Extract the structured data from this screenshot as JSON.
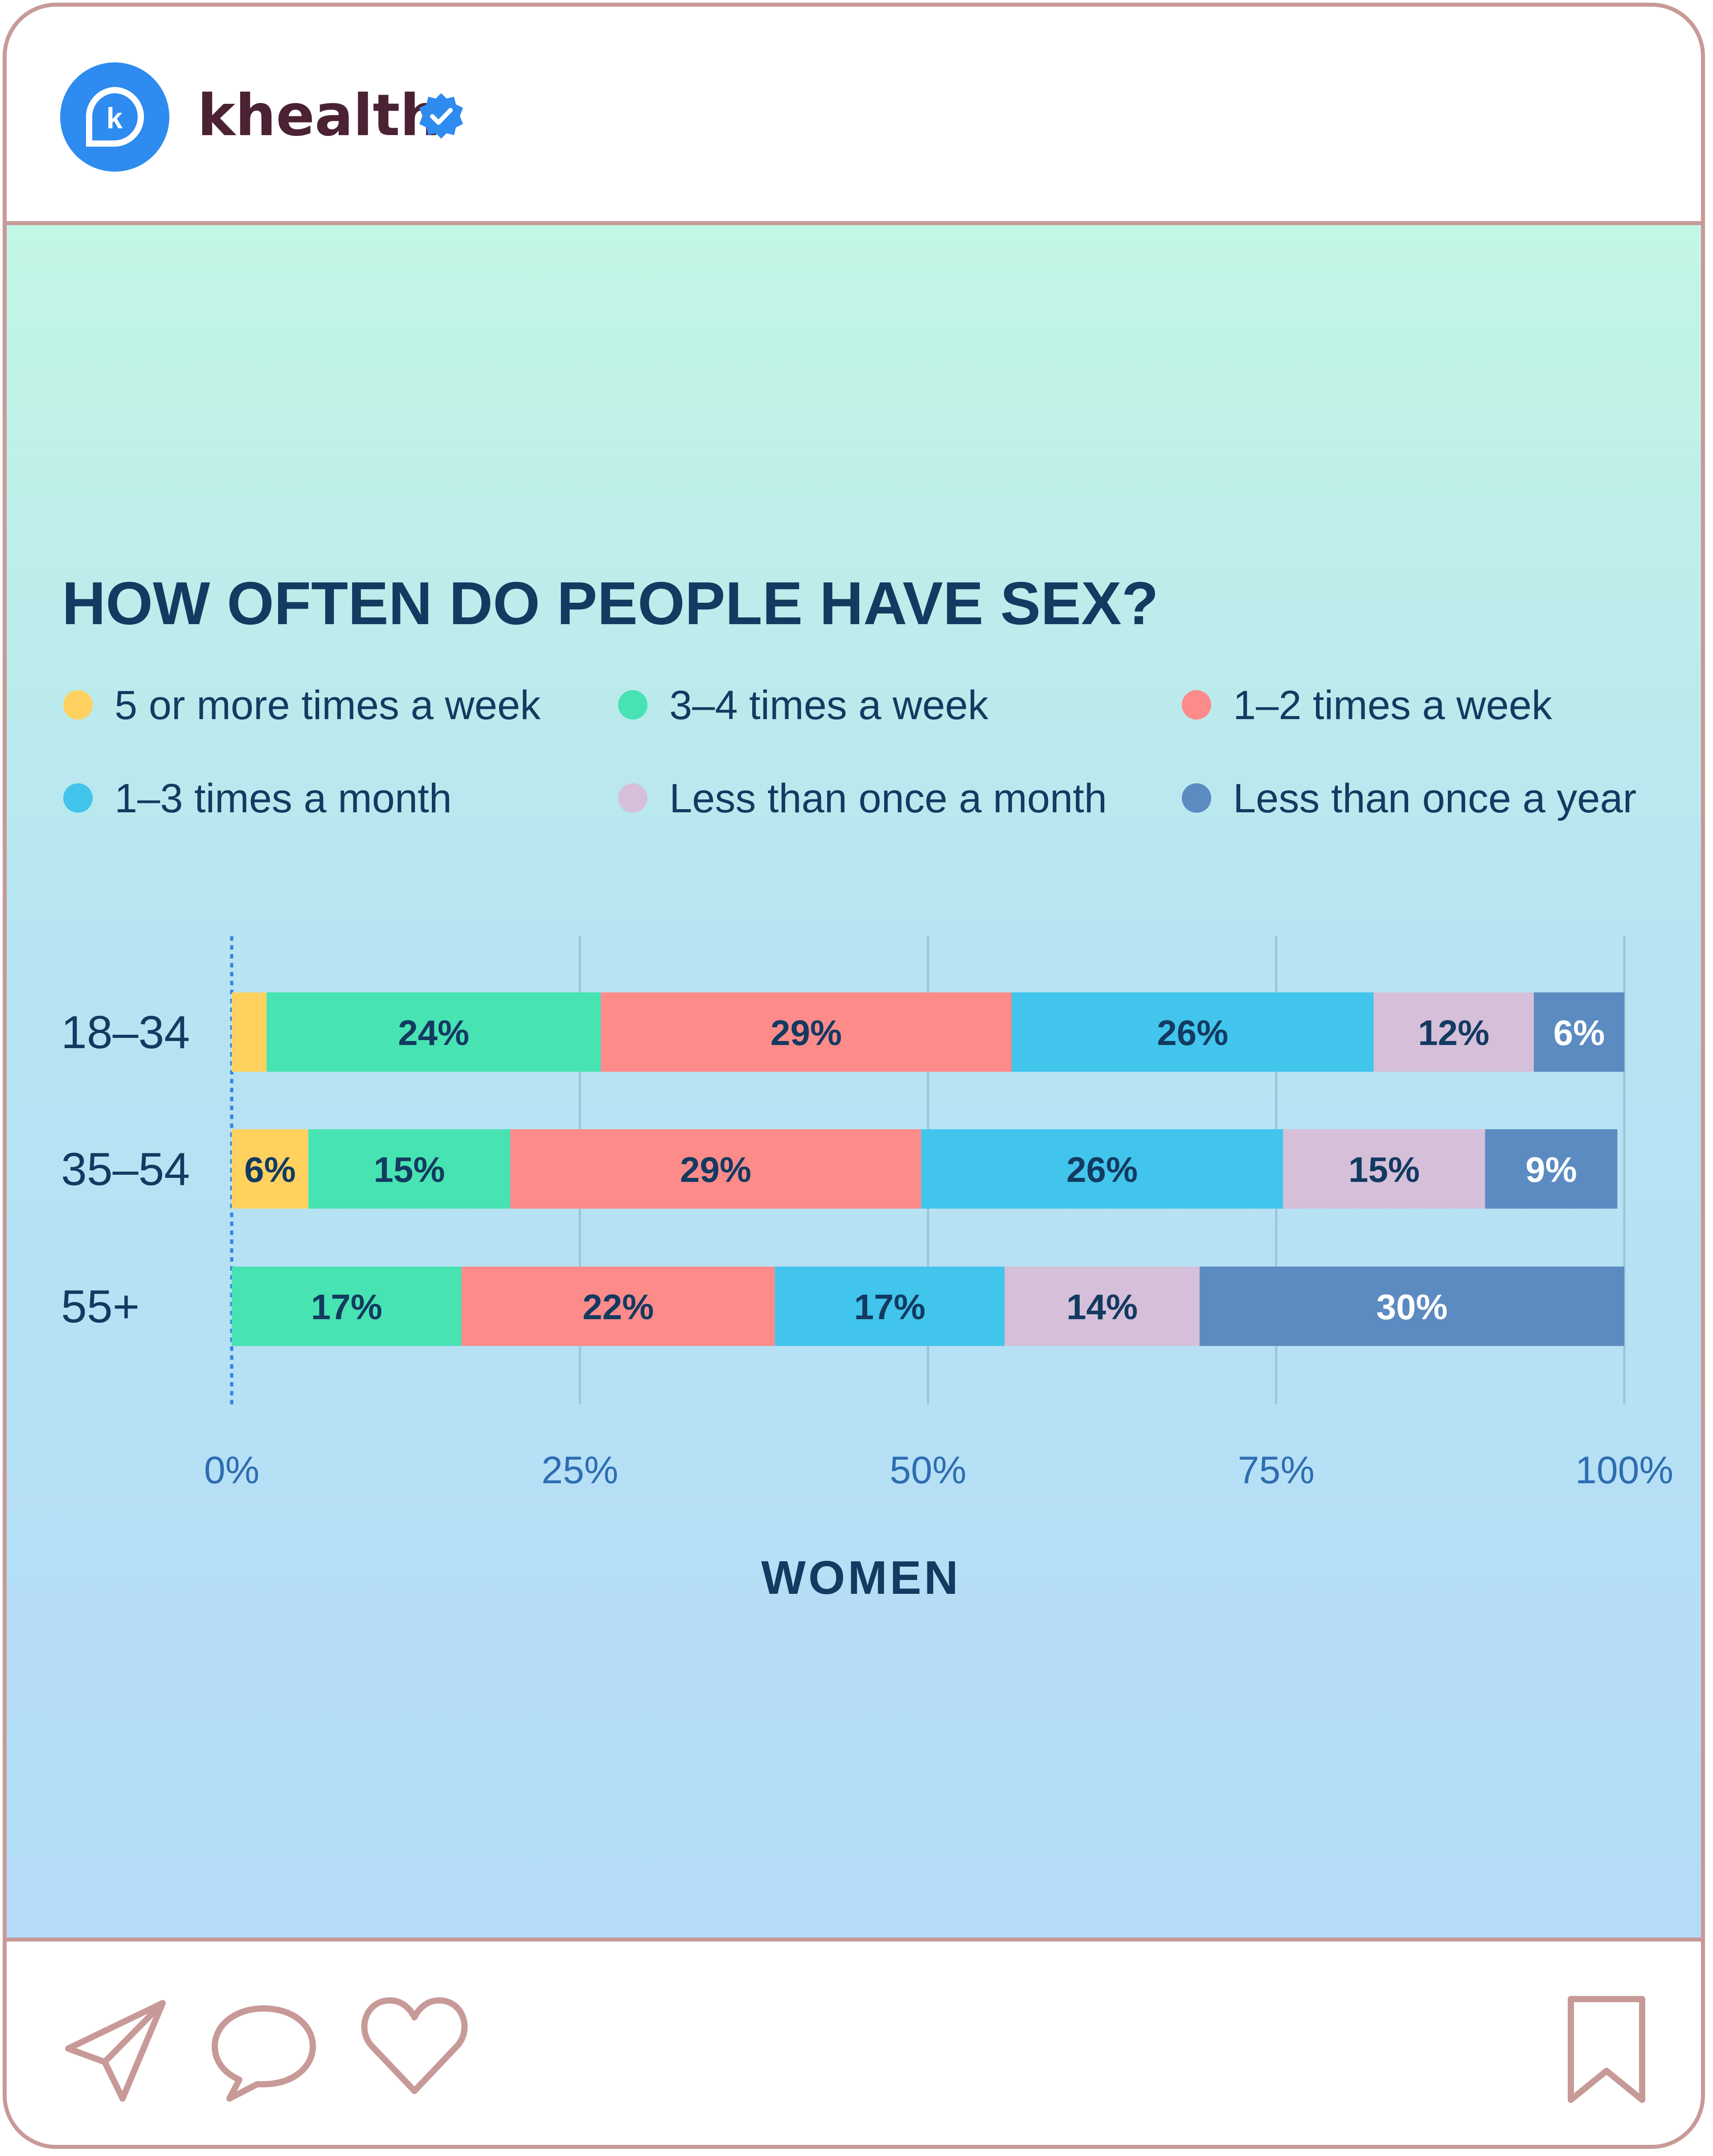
{
  "header": {
    "account_name": "khealth",
    "logo_letter": "k"
  },
  "chart_data": {
    "type": "bar",
    "orientation": "horizontal",
    "stacked": true,
    "title": "HOW OFTEN DO PEOPLE HAVE SEX?",
    "xlabel": "WOMEN",
    "ylabel": "",
    "xlim": [
      0,
      100
    ],
    "x_ticks": [
      0,
      25,
      50,
      75,
      100
    ],
    "x_tick_labels": [
      "0%",
      "25%",
      "50%",
      "75%",
      "100%"
    ],
    "grid": "vertical",
    "legend_position": "top",
    "categories": [
      "18-34",
      "35-54",
      "55+"
    ],
    "series": [
      {
        "name": "5 or more times a week",
        "color": "#ffd25f",
        "text_color": "#133a61",
        "values": [
          2.5,
          5.5,
          0
        ],
        "labels": [
          "",
          "6%",
          ""
        ]
      },
      {
        "name": "3-4 times a week",
        "color": "#47e3b3",
        "text_color": "#133a61",
        "values": [
          24,
          14.5,
          16.5
        ],
        "labels": [
          "24%",
          "15%",
          "17%"
        ]
      },
      {
        "name": "1-2 times a week",
        "color": "#fd8b8a",
        "text_color": "#133a61",
        "values": [
          29.5,
          29.5,
          22.5
        ],
        "labels": [
          "29%",
          "29%",
          "22%"
        ]
      },
      {
        "name": "1-3 times a month",
        "color": "#41c5ec",
        "text_color": "#133a61",
        "values": [
          26,
          26,
          16.5
        ],
        "labels": [
          "26%",
          "26%",
          "17%"
        ]
      },
      {
        "name": "Less than once a month",
        "color": "#d6bfd9",
        "text_color": "#133a61",
        "values": [
          11.5,
          14.5,
          14
        ],
        "labels": [
          "12%",
          "15%",
          "14%"
        ]
      },
      {
        "name": "Less than once a year",
        "color": "#5b8bc1",
        "text_color": "#ffffff",
        "values": [
          6.5,
          9.5,
          30.5
        ],
        "labels": [
          "6%",
          "9%",
          "30%"
        ]
      }
    ]
  }
}
